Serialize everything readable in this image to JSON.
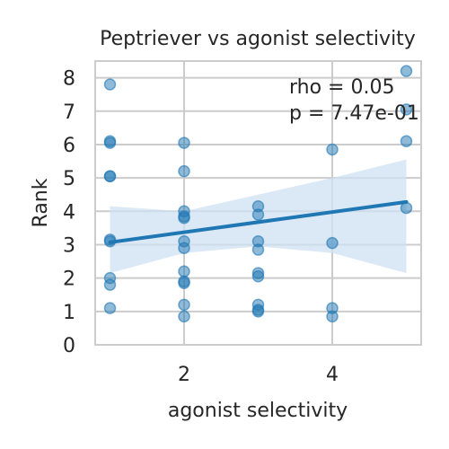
{
  "chart_data": {
    "type": "scatter",
    "title": "Peptriever vs agonist selectivity",
    "xlabel": "agonist selectivity",
    "ylabel": "Rank",
    "xlim": [
      0.8,
      5.2
    ],
    "ylim": [
      0,
      8.5
    ],
    "x_ticks": [
      2,
      4
    ],
    "y_ticks": [
      0,
      1,
      2,
      3,
      4,
      5,
      6,
      7,
      8
    ],
    "grid": true,
    "annotation": [
      "rho = 0.05",
      "p = 7.47e-01"
    ],
    "points": [
      {
        "x": 1,
        "y": 7.8
      },
      {
        "x": 1,
        "y": 6.1
      },
      {
        "x": 1,
        "y": 6.05
      },
      {
        "x": 1,
        "y": 5.05
      },
      {
        "x": 1,
        "y": 5.05
      },
      {
        "x": 1,
        "y": 3.15
      },
      {
        "x": 1,
        "y": 3.1
      },
      {
        "x": 1,
        "y": 2.0
      },
      {
        "x": 1,
        "y": 1.8
      },
      {
        "x": 1,
        "y": 1.1
      },
      {
        "x": 2,
        "y": 6.05
      },
      {
        "x": 2,
        "y": 5.2
      },
      {
        "x": 2,
        "y": 4.0
      },
      {
        "x": 2,
        "y": 3.85
      },
      {
        "x": 2,
        "y": 3.8
      },
      {
        "x": 2,
        "y": 3.1
      },
      {
        "x": 2,
        "y": 2.9
      },
      {
        "x": 2,
        "y": 2.2
      },
      {
        "x": 2,
        "y": 1.9
      },
      {
        "x": 2,
        "y": 1.85
      },
      {
        "x": 2,
        "y": 1.2
      },
      {
        "x": 2,
        "y": 0.85
      },
      {
        "x": 3,
        "y": 4.15
      },
      {
        "x": 3,
        "y": 3.9
      },
      {
        "x": 3,
        "y": 3.1
      },
      {
        "x": 3,
        "y": 2.85
      },
      {
        "x": 3,
        "y": 2.15
      },
      {
        "x": 3,
        "y": 2.05
      },
      {
        "x": 3,
        "y": 1.2
      },
      {
        "x": 3,
        "y": 1.05
      },
      {
        "x": 3,
        "y": 1.0
      },
      {
        "x": 4,
        "y": 5.85
      },
      {
        "x": 4,
        "y": 3.05
      },
      {
        "x": 4,
        "y": 1.1
      },
      {
        "x": 4,
        "y": 0.85
      },
      {
        "x": 5,
        "y": 8.2
      },
      {
        "x": 5,
        "y": 7.05
      },
      {
        "x": 5,
        "y": 6.1
      },
      {
        "x": 5,
        "y": 4.1
      }
    ],
    "regression": {
      "x": [
        1,
        5
      ],
      "y": [
        3.07,
        4.28
      ]
    },
    "confidence_band": {
      "x": [
        1,
        2,
        3,
        4,
        5
      ],
      "upper": [
        4.15,
        4.0,
        4.5,
        5.0,
        5.55
      ],
      "lower": [
        2.15,
        2.75,
        2.95,
        2.75,
        2.15
      ]
    },
    "colors": {
      "points": "#1f77b4",
      "line": "#1f77b4",
      "band": "#cfe0f1",
      "grid": "#cccccc",
      "text": "#262626"
    }
  }
}
